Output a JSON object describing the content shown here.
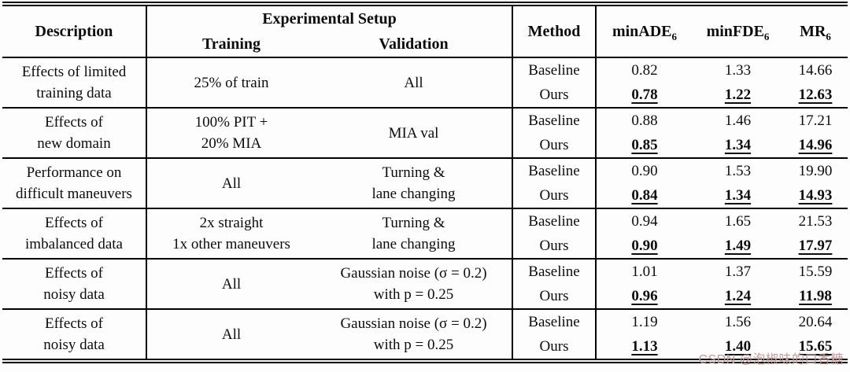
{
  "header": {
    "description": "Description",
    "experimental_setup": "Experimental Setup",
    "training": "Training",
    "validation": "Validation",
    "method": "Method",
    "metrics": [
      {
        "name": "minADE",
        "sub": "6"
      },
      {
        "name": "minFDE",
        "sub": "6"
      },
      {
        "name": "MR",
        "sub": "6"
      }
    ]
  },
  "groups": [
    {
      "description": [
        "Effects of limited",
        "training data"
      ],
      "training": [
        "25% of train"
      ],
      "validation": [
        "All"
      ],
      "baseline": {
        "label": "Baseline",
        "minADE6": "0.82",
        "minFDE6": "1.33",
        "MR6": "14.66"
      },
      "ours": {
        "label": "Ours",
        "minADE6": "0.78",
        "minFDE6": "1.22",
        "MR6": "12.63"
      }
    },
    {
      "description": [
        "Effects of",
        "new domain"
      ],
      "training": [
        "100% PIT +",
        "20% MIA"
      ],
      "validation": [
        "MIA val"
      ],
      "baseline": {
        "label": "Baseline",
        "minADE6": "0.88",
        "minFDE6": "1.46",
        "MR6": "17.21"
      },
      "ours": {
        "label": "Ours",
        "minADE6": "0.85",
        "minFDE6": "1.34",
        "MR6": "14.96"
      }
    },
    {
      "description": [
        "Performance on",
        "difficult maneuvers"
      ],
      "training": [
        "All"
      ],
      "validation": [
        "Turning &",
        "lane changing"
      ],
      "baseline": {
        "label": "Baseline",
        "minADE6": "0.90",
        "minFDE6": "1.53",
        "MR6": "19.90"
      },
      "ours": {
        "label": "Ours",
        "minADE6": "0.84",
        "minFDE6": "1.34",
        "MR6": "14.93"
      }
    },
    {
      "description": [
        "Effects of",
        "imbalanced data"
      ],
      "training": [
        "2x straight",
        "1x other maneuvers"
      ],
      "validation": [
        "Turning &",
        "lane changing"
      ],
      "baseline": {
        "label": "Baseline",
        "minADE6": "0.94",
        "minFDE6": "1.65",
        "MR6": "21.53"
      },
      "ours": {
        "label": "Ours",
        "minADE6": "0.90",
        "minFDE6": "1.49",
        "MR6": "17.97"
      }
    },
    {
      "description": [
        "Effects of",
        "noisy data"
      ],
      "training": [
        "All"
      ],
      "validation": [
        "Gaussian noise (σ = 0.2)",
        "with p = 0.25"
      ],
      "baseline": {
        "label": "Baseline",
        "minADE6": "1.01",
        "minFDE6": "1.37",
        "MR6": "15.59"
      },
      "ours": {
        "label": "Ours",
        "minADE6": "0.96",
        "minFDE6": "1.24",
        "MR6": "11.98"
      }
    },
    {
      "description": [
        "Effects of",
        "noisy data"
      ],
      "training": [
        "All"
      ],
      "validation": [
        "Gaussian noise (σ = 0.2)",
        "with p = 0.25"
      ],
      "baseline": {
        "label": "Baseline",
        "minADE6": "1.19",
        "minFDE6": "1.56",
        "MR6": "20.64"
      },
      "ours": {
        "label": "Ours",
        "minADE6": "1.13",
        "minFDE6": "1.40",
        "MR6": "15.65"
      }
    }
  ],
  "watermark": {
    "text": "CSDN @泡椒味的口香糖",
    "color": "#c59a9a"
  }
}
